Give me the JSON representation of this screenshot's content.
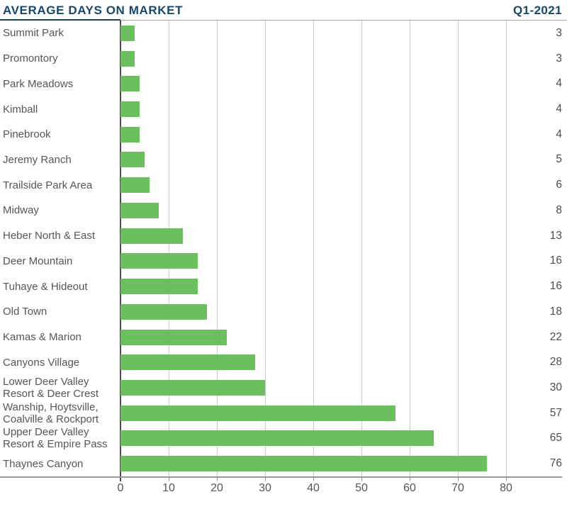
{
  "header": {
    "title": "AVERAGE DAYS ON MARKET",
    "period": "Q1-2021"
  },
  "colors": {
    "title_navy": "#17476B",
    "bar_green": "#6CBF5E",
    "label_gray": "#55565A",
    "value_gray": "#4B4C4E",
    "gridline_gray": "#CBCCCE",
    "axis_dark": "#4C4D4F"
  },
  "chart_data": {
    "type": "bar",
    "orientation": "horizontal",
    "title": "AVERAGE DAYS ON MARKET",
    "subtitle": "Q1-2021",
    "xlabel": "",
    "ylabel": "",
    "grid": "vertical",
    "legend": "none",
    "x_ticks": [
      0,
      10,
      20,
      30,
      40,
      50,
      60,
      70,
      80
    ],
    "xlim": [
      0,
      91.6
    ],
    "categories": [
      "Summit Park",
      "Promontory",
      "Park Meadows",
      "Kimball",
      "Pinebrook",
      "Jeremy Ranch",
      "Trailside Park Area",
      "Midway",
      "Heber North & East",
      "Deer Mountain",
      "Tuhaye & Hideout",
      "Old Town",
      "Kamas & Marion",
      "Canyons Village",
      "Lower Deer Valley\n Resort & Deer Crest",
      "Wanship, Hoytsville,\n Coalville & Rockport",
      "Upper Deer Valley\n Resort & Empire Pass",
      "Thaynes Canyon"
    ],
    "values": [
      3,
      3,
      4,
      4,
      4,
      5,
      6,
      8,
      13,
      16,
      16,
      18,
      22,
      28,
      30,
      57,
      65,
      76
    ]
  }
}
